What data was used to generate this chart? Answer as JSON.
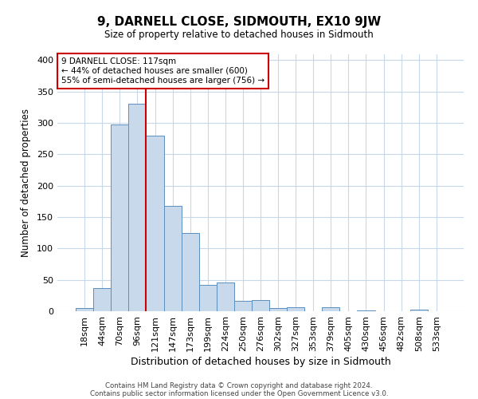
{
  "title": "9, DARNELL CLOSE, SIDMOUTH, EX10 9JW",
  "subtitle": "Size of property relative to detached houses in Sidmouth",
  "xlabel": "Distribution of detached houses by size in Sidmouth",
  "ylabel": "Number of detached properties",
  "bar_labels": [
    "18sqm",
    "44sqm",
    "70sqm",
    "96sqm",
    "121sqm",
    "147sqm",
    "173sqm",
    "199sqm",
    "224sqm",
    "250sqm",
    "276sqm",
    "302sqm",
    "327sqm",
    "353sqm",
    "379sqm",
    "405sqm",
    "430sqm",
    "456sqm",
    "482sqm",
    "508sqm",
    "533sqm"
  ],
  "bar_heights": [
    5,
    37,
    297,
    330,
    280,
    168,
    125,
    42,
    46,
    16,
    18,
    5,
    6,
    0,
    6,
    0,
    1,
    0,
    0,
    3,
    0
  ],
  "bar_color": "#c9d9ec",
  "bar_edge_color": "#5b8fbe",
  "vline_x_index": 4,
  "vline_color": "#cc0000",
  "annotation_title": "9 DARNELL CLOSE: 117sqm",
  "annotation_line1": "← 44% of detached houses are smaller (600)",
  "annotation_line2": "55% of semi-detached houses are larger (756) →",
  "annotation_box_color": "#cc0000",
  "footer_line1": "Contains HM Land Registry data © Crown copyright and database right 2024.",
  "footer_line2": "Contains public sector information licensed under the Open Government Licence v3.0.",
  "ylim": [
    0,
    410
  ],
  "yticks": [
    0,
    50,
    100,
    150,
    200,
    250,
    300,
    350,
    400
  ],
  "background_color": "#ffffff",
  "grid_color": "#c8d8e8"
}
